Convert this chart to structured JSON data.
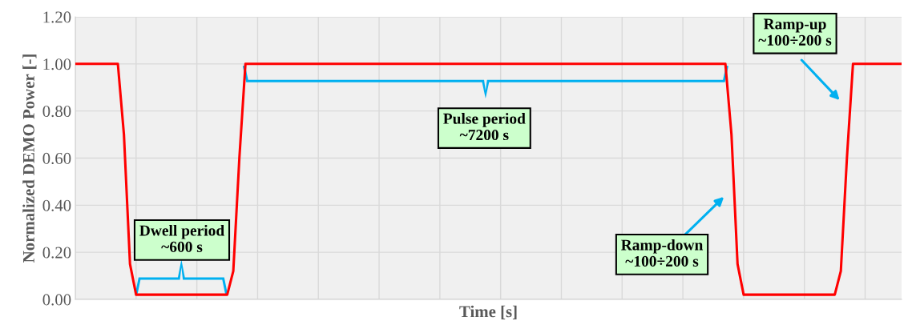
{
  "chart_data": {
    "type": "line",
    "xlabel": "Time [s]",
    "ylabel": "Normalized DEMO Power [-]",
    "categories": [
      null,
      null,
      null,
      null,
      null,
      null,
      null,
      null,
      null,
      null,
      null,
      null,
      null,
      null,
      null,
      null,
      null,
      null,
      null,
      null,
      null,
      null,
      null,
      null,
      null,
      null,
      null,
      null,
      null,
      null,
      null,
      null,
      null,
      null,
      null,
      null,
      null,
      null,
      null,
      null,
      null,
      null,
      null,
      null,
      null,
      null,
      null,
      null,
      null,
      null,
      null,
      null,
      null,
      null,
      null,
      null,
      null,
      null,
      null,
      null,
      null,
      null,
      null,
      null,
      null,
      null,
      null,
      null,
      null,
      null,
      null,
      null,
      null,
      null,
      null,
      null,
      null,
      null,
      null,
      null,
      null,
      null,
      null,
      null,
      null,
      null,
      null,
      null,
      null,
      null,
      null,
      null,
      null,
      null,
      null,
      null,
      null,
      null,
      null,
      null,
      null,
      null,
      null,
      null,
      null,
      null,
      null,
      null,
      null,
      null,
      null,
      null,
      null,
      null,
      null,
      null,
      null,
      null,
      null,
      null,
      null,
      null,
      null,
      null,
      null,
      null,
      null,
      null,
      null,
      null,
      null,
      null,
      null,
      null,
      null,
      null,
      null
    ],
    "series": [
      {
        "color": "#ff0000",
        "values": [
          1.0,
          1.0,
          1.0,
          1.0,
          1.0,
          1.0,
          1.0,
          1.0,
          0.7,
          0.15,
          0.02,
          0.02,
          0.02,
          0.02,
          0.02,
          0.02,
          0.02,
          0.02,
          0.02,
          0.02,
          0.02,
          0.02,
          0.02,
          0.02,
          0.02,
          0.02,
          0.12,
          0.6,
          1.0,
          1.0,
          1.0,
          1.0,
          1.0,
          1.0,
          1.0,
          1.0,
          1.0,
          1.0,
          1.0,
          1.0,
          1.0,
          1.0,
          1.0,
          1.0,
          1.0,
          1.0,
          1.0,
          1.0,
          1.0,
          1.0,
          1.0,
          1.0,
          1.0,
          1.0,
          1.0,
          1.0,
          1.0,
          1.0,
          1.0,
          1.0,
          1.0,
          1.0,
          1.0,
          1.0,
          1.0,
          1.0,
          1.0,
          1.0,
          1.0,
          1.0,
          1.0,
          1.0,
          1.0,
          1.0,
          1.0,
          1.0,
          1.0,
          1.0,
          1.0,
          1.0,
          1.0,
          1.0,
          1.0,
          1.0,
          1.0,
          1.0,
          1.0,
          1.0,
          1.0,
          1.0,
          1.0,
          1.0,
          1.0,
          1.0,
          1.0,
          1.0,
          1.0,
          1.0,
          1.0,
          1.0,
          1.0,
          1.0,
          1.0,
          1.0,
          1.0,
          1.0,
          1.0,
          1.0,
          0.7,
          0.15,
          0.02,
          0.02,
          0.02,
          0.02,
          0.02,
          0.02,
          0.02,
          0.02,
          0.02,
          0.02,
          0.02,
          0.02,
          0.02,
          0.02,
          0.02,
          0.02,
          0.12,
          0.6,
          1.0,
          1.0,
          1.0,
          1.0,
          1.0,
          1.0,
          1.0,
          1.0,
          1.0
        ]
      }
    ],
    "ylim": [
      0,
      1.2
    ],
    "yticks": [
      {
        "value": 0,
        "label": "0.00"
      },
      {
        "value": 0.2,
        "label": "0.20"
      },
      {
        "value": 0.4,
        "label": "0.40"
      },
      {
        "value": 0.6,
        "label": "0.60"
      },
      {
        "value": 0.8,
        "label": "0.80"
      },
      {
        "value": 1.0,
        "label": "1.00"
      },
      {
        "value": 1.2,
        "label": "1.20"
      }
    ],
    "tick_labels": "y",
    "grid": true,
    "marker": "none",
    "line_style": "solid",
    "annotations": [
      "Dwell period\n~600 s",
      "Pulse period\n~7200 s",
      "Ramp-down\n~100÷200 s",
      "Ramp-up\n~100÷200 s"
    ]
  }
}
